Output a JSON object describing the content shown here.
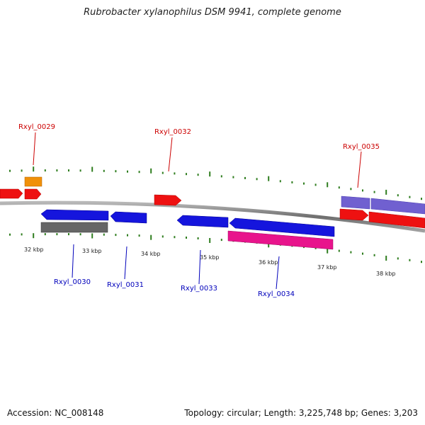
{
  "title": "Rubrobacter xylanophilus DSM 9941, complete genome",
  "footer": {
    "accession": "Accession: NC_008148",
    "topology": "Topology: circular; Length: 3,225,748 bp; Genes: 3,203"
  },
  "colors": {
    "backbone": "#8a8a8a",
    "tick": "#2e7d1e",
    "forward_label": "#cc0000",
    "reverse_label": "#0000bb",
    "red": "#ee1111",
    "orange": "#f0900a",
    "blue": "#1515dd",
    "gray": "#666666",
    "magenta": "#e8148c",
    "purple": "#7060d0"
  },
  "kbp_labels": [
    "32 kbp",
    "33 kbp",
    "34 kbp",
    "35 kbp",
    "36 kbp",
    "37 kbp",
    "38 kbp"
  ],
  "gene_labels": {
    "forward": [
      "Rxyl_0029",
      "Rxyl_0032",
      "Rxyl_0035"
    ],
    "reverse": [
      "Rxyl_0030",
      "Rxyl_0031",
      "Rxyl_0033",
      "Rxyl_0034"
    ]
  }
}
